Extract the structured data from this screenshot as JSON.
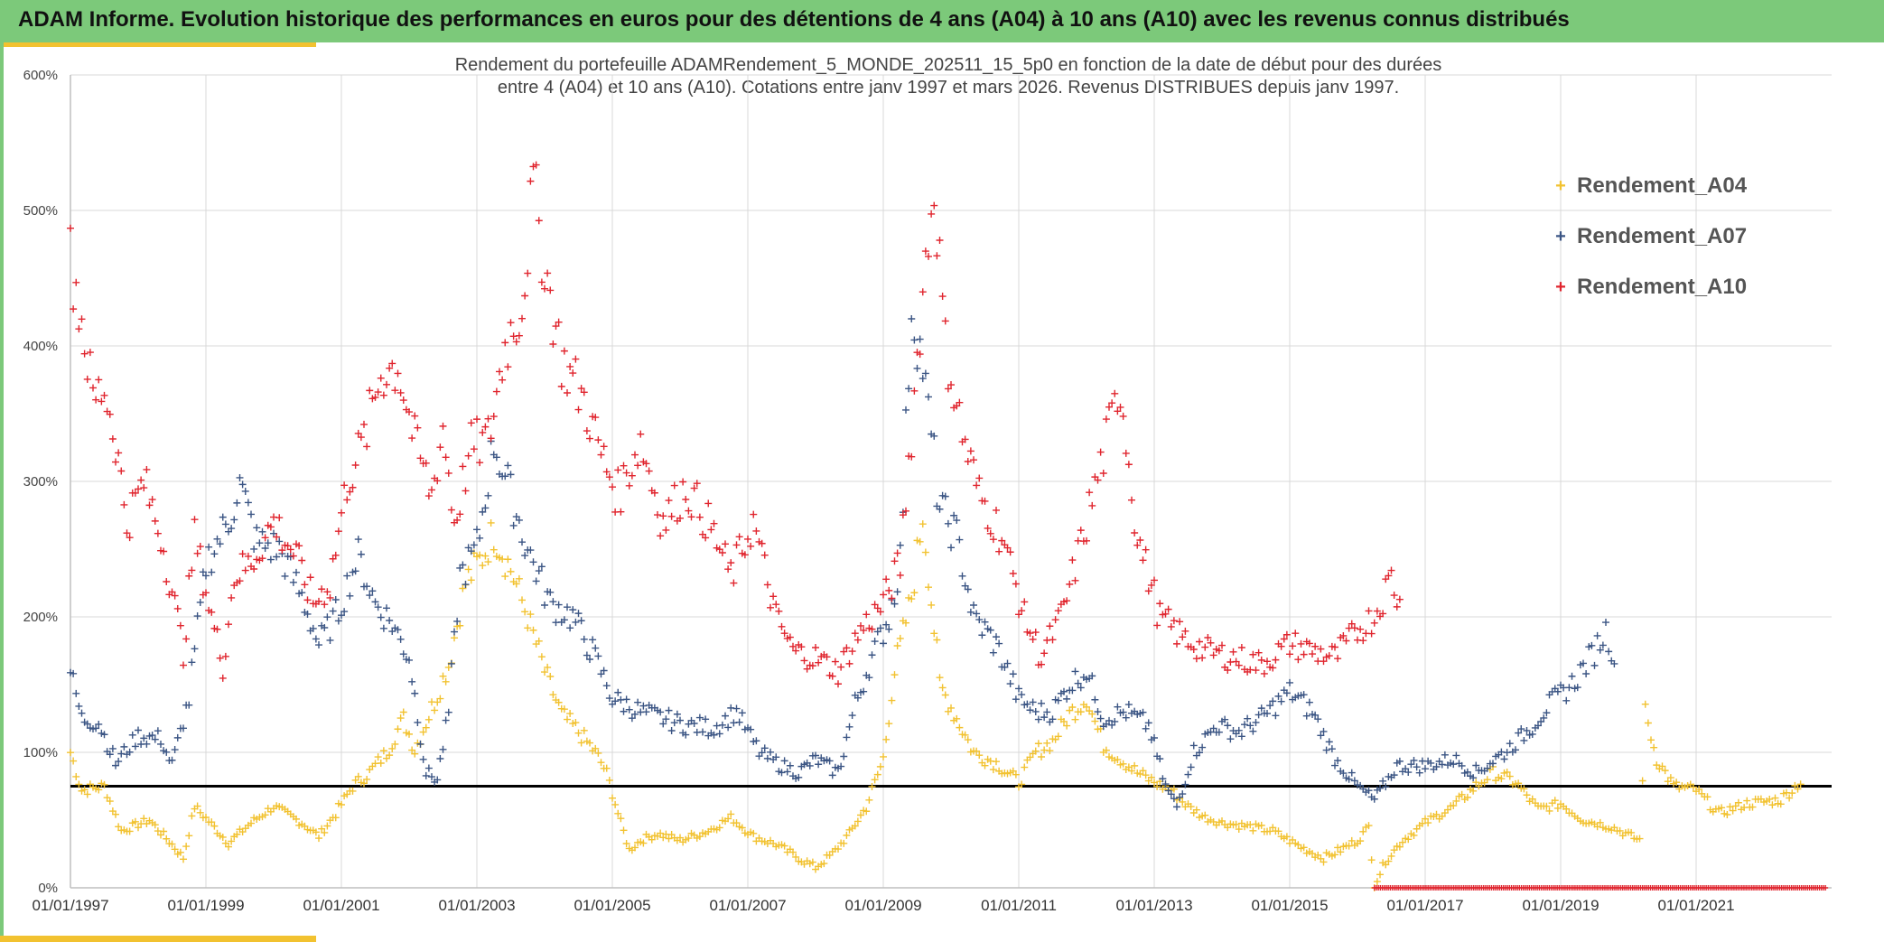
{
  "banner": {
    "title": "ADAM Informe. Evolution historique des performances en euros pour des détentions de 4 ans (A04) à 10 ans (A10) avec les revenus connus distribués"
  },
  "chart_data": {
    "type": "scatter",
    "title_line1": "Rendement du portefeuille ADAMRendement_5_MONDE_202511_15_5p0  en fonction de la date de début pour des durées",
    "title_line2": "entre 4 (A04) et 10 ans (A10). Cotations entre janv 1997 et mars 2026. Revenus DISTRIBUES depuis janv 1997.",
    "x_range": [
      "1997-01-01",
      "2022-12-31"
    ],
    "x_ticks": [
      "01/01/1997",
      "01/01/1999",
      "01/01/2001",
      "01/01/2003",
      "01/01/2005",
      "01/01/2007",
      "01/01/2009",
      "01/01/2011",
      "01/01/2013",
      "01/01/2015",
      "01/01/2017",
      "01/01/2019",
      "01/01/2021"
    ],
    "y_ticks": [
      "0%",
      "100%",
      "200%",
      "300%",
      "400%",
      "500%",
      "600%"
    ],
    "ylim": [
      0,
      600
    ],
    "reference_line_y": 75,
    "grid": true,
    "legend_position": "top-right",
    "series": [
      {
        "name": "Rendement_A04",
        "color": "#f2c230",
        "points": [
          [
            "1997-01",
            100
          ],
          [
            "1997-03",
            72
          ],
          [
            "1997-07",
            75
          ],
          [
            "1997-10",
            42
          ],
          [
            "1998-03",
            50
          ],
          [
            "1998-07",
            32
          ],
          [
            "1998-09",
            22
          ],
          [
            "1998-11",
            60
          ],
          [
            "1999-02",
            47
          ],
          [
            "1999-05",
            33
          ],
          [
            "1999-09",
            48
          ],
          [
            "2000-01",
            60
          ],
          [
            "2000-06",
            48
          ],
          [
            "2000-09",
            38
          ],
          [
            "2000-12",
            55
          ],
          [
            "2001-03",
            75
          ],
          [
            "2001-06",
            85
          ],
          [
            "2001-09",
            100
          ],
          [
            "2001-12",
            125
          ],
          [
            "2002-02",
            102
          ],
          [
            "2002-05",
            132
          ],
          [
            "2002-08",
            165
          ],
          [
            "2002-11",
            225
          ],
          [
            "2003-02",
            245
          ],
          [
            "2003-04",
            262
          ],
          [
            "2003-07",
            235
          ],
          [
            "2003-10",
            200
          ],
          [
            "2004-01",
            160
          ],
          [
            "2004-04",
            128
          ],
          [
            "2004-07",
            115
          ],
          [
            "2004-10",
            100
          ],
          [
            "2004-12",
            85
          ],
          [
            "2005-02",
            55
          ],
          [
            "2005-04",
            28
          ],
          [
            "2005-06",
            35
          ],
          [
            "2005-09",
            40
          ],
          [
            "2006-01",
            35
          ],
          [
            "2006-06",
            42
          ],
          [
            "2006-10",
            52
          ],
          [
            "2007-02",
            38
          ],
          [
            "2007-06",
            32
          ],
          [
            "2007-10",
            22
          ],
          [
            "2008-01",
            15
          ],
          [
            "2008-04",
            25
          ],
          [
            "2008-07",
            40
          ],
          [
            "2008-10",
            60
          ],
          [
            "2009-01",
            95
          ],
          [
            "2009-03",
            160
          ],
          [
            "2009-06",
            215
          ],
          [
            "2009-08",
            275
          ],
          [
            "2009-11",
            150
          ],
          [
            "2010-02",
            125
          ],
          [
            "2010-05",
            100
          ],
          [
            "2010-09",
            92
          ],
          [
            "2011-01",
            78
          ],
          [
            "2011-04",
            100
          ],
          [
            "2011-07",
            108
          ],
          [
            "2011-10",
            128
          ],
          [
            "2012-01",
            140
          ],
          [
            "2012-04",
            105
          ],
          [
            "2012-07",
            95
          ],
          [
            "2012-10",
            85
          ],
          [
            "2013-01",
            78
          ],
          [
            "2013-04",
            72
          ],
          [
            "2013-07",
            60
          ],
          [
            "2013-10",
            52
          ],
          [
            "2014-01",
            48
          ],
          [
            "2014-06",
            45
          ],
          [
            "2014-10",
            42
          ],
          [
            "2015-03",
            30
          ],
          [
            "2015-07",
            22
          ],
          [
            "2015-10",
            28
          ],
          [
            "2016-01",
            35
          ],
          [
            "2016-03",
            45
          ],
          [
            "2016-04",
            2
          ],
          [
            "2016-06",
            20
          ],
          [
            "2016-09",
            35
          ],
          [
            "2017-01",
            48
          ],
          [
            "2017-06",
            60
          ],
          [
            "2017-10",
            75
          ],
          [
            "2018-01",
            85
          ],
          [
            "2018-05",
            78
          ],
          [
            "2018-09",
            58
          ],
          [
            "2019-01",
            62
          ],
          [
            "2019-05",
            50
          ],
          [
            "2019-10",
            45
          ],
          [
            "2020-03",
            35
          ],
          [
            "2020-04",
            130
          ],
          [
            "2020-06",
            95
          ],
          [
            "2020-09",
            75
          ],
          [
            "2021-01",
            72
          ],
          [
            "2021-05",
            55
          ],
          [
            "2021-10",
            62
          ],
          [
            "2022-04",
            65
          ],
          [
            "2022-08",
            80
          ]
        ]
      },
      {
        "name": "Rendement_A07",
        "color": "#3b5584",
        "points": [
          [
            "1997-01",
            160
          ],
          [
            "1997-03",
            125
          ],
          [
            "1997-06",
            122
          ],
          [
            "1997-09",
            92
          ],
          [
            "1998-01",
            112
          ],
          [
            "1998-05",
            110
          ],
          [
            "1998-07",
            90
          ],
          [
            "1998-10",
            140
          ],
          [
            "1999-01",
            240
          ],
          [
            "1999-05",
            270
          ],
          [
            "1999-07",
            298
          ],
          [
            "1999-10",
            255
          ],
          [
            "2000-02",
            250
          ],
          [
            "2000-06",
            215
          ],
          [
            "2000-09",
            180
          ],
          [
            "2000-12",
            200
          ],
          [
            "2001-04",
            245
          ],
          [
            "2001-07",
            210
          ],
          [
            "2001-10",
            195
          ],
          [
            "2002-01",
            170
          ],
          [
            "2002-04",
            85
          ],
          [
            "2002-06",
            80
          ],
          [
            "2002-08",
            130
          ],
          [
            "2002-10",
            230
          ],
          [
            "2003-01",
            250
          ],
          [
            "2003-04",
            330
          ],
          [
            "2003-07",
            290
          ],
          [
            "2003-10",
            250
          ],
          [
            "2004-02",
            210
          ],
          [
            "2004-06",
            200
          ],
          [
            "2004-10",
            170
          ],
          [
            "2005-01",
            140
          ],
          [
            "2005-06",
            130
          ],
          [
            "2005-10",
            125
          ],
          [
            "2006-02",
            120
          ],
          [
            "2006-07",
            118
          ],
          [
            "2006-11",
            130
          ],
          [
            "2007-03",
            100
          ],
          [
            "2007-07",
            90
          ],
          [
            "2007-10",
            85
          ],
          [
            "2008-01",
            95
          ],
          [
            "2008-05",
            85
          ],
          [
            "2008-08",
            135
          ],
          [
            "2008-11",
            170
          ],
          [
            "2009-02",
            200
          ],
          [
            "2009-04",
            240
          ],
          [
            "2009-06",
            430
          ],
          [
            "2009-08",
            385
          ],
          [
            "2009-11",
            280
          ],
          [
            "2010-02",
            260
          ],
          [
            "2010-05",
            200
          ],
          [
            "2010-09",
            180
          ],
          [
            "2011-01",
            140
          ],
          [
            "2011-04",
            130
          ],
          [
            "2011-07",
            130
          ],
          [
            "2011-10",
            150
          ],
          [
            "2012-01",
            160
          ],
          [
            "2012-04",
            125
          ],
          [
            "2012-08",
            130
          ],
          [
            "2012-12",
            120
          ],
          [
            "2013-03",
            75
          ],
          [
            "2013-05",
            60
          ],
          [
            "2013-08",
            100
          ],
          [
            "2013-12",
            120
          ],
          [
            "2014-04",
            115
          ],
          [
            "2014-08",
            125
          ],
          [
            "2015-01",
            145
          ],
          [
            "2015-05",
            130
          ],
          [
            "2015-09",
            95
          ],
          [
            "2016-01",
            75
          ],
          [
            "2016-04",
            65
          ],
          [
            "2016-08",
            90
          ],
          [
            "2017-01",
            90
          ],
          [
            "2017-06",
            95
          ],
          [
            "2017-10",
            85
          ],
          [
            "2018-03",
            100
          ],
          [
            "2018-07",
            115
          ],
          [
            "2018-11",
            135
          ],
          [
            "2019-03",
            150
          ],
          [
            "2019-07",
            175
          ],
          [
            "2019-09",
            190
          ],
          [
            "2019-11",
            165
          ]
        ]
      },
      {
        "name": "Rendement_A10",
        "color": "#e0252e",
        "points": [
          [
            "1997-01",
            465
          ],
          [
            "1997-03",
            420
          ],
          [
            "1997-05",
            360
          ],
          [
            "1997-07",
            370
          ],
          [
            "1997-09",
            330
          ],
          [
            "1997-11",
            270
          ],
          [
            "1998-02",
            300
          ],
          [
            "1998-05",
            260
          ],
          [
            "1998-07",
            220
          ],
          [
            "1998-09",
            175
          ],
          [
            "1998-11",
            260
          ],
          [
            "1999-02",
            200
          ],
          [
            "1999-04",
            165
          ],
          [
            "1999-06",
            230
          ],
          [
            "1999-09",
            240
          ],
          [
            "2000-01",
            270
          ],
          [
            "2000-05",
            245
          ],
          [
            "2000-08",
            210
          ],
          [
            "2000-11",
            225
          ],
          [
            "2001-02",
            300
          ],
          [
            "2001-05",
            330
          ],
          [
            "2001-08",
            380
          ],
          [
            "2001-11",
            385
          ],
          [
            "2002-02",
            330
          ],
          [
            "2002-05",
            290
          ],
          [
            "2002-07",
            340
          ],
          [
            "2002-09",
            270
          ],
          [
            "2002-12",
            325
          ],
          [
            "2003-03",
            330
          ],
          [
            "2003-06",
            400
          ],
          [
            "2003-09",
            430
          ],
          [
            "2003-11",
            520
          ],
          [
            "2004-01",
            460
          ],
          [
            "2004-04",
            390
          ],
          [
            "2004-08",
            360
          ],
          [
            "2004-11",
            320
          ],
          [
            "2005-02",
            290
          ],
          [
            "2005-06",
            330
          ],
          [
            "2005-10",
            270
          ],
          [
            "2006-02",
            295
          ],
          [
            "2006-06",
            270
          ],
          [
            "2006-10",
            230
          ],
          [
            "2007-02",
            270
          ],
          [
            "2007-06",
            200
          ],
          [
            "2007-09",
            175
          ],
          [
            "2008-01",
            170
          ],
          [
            "2008-05",
            160
          ],
          [
            "2008-09",
            190
          ],
          [
            "2009-01",
            210
          ],
          [
            "2009-04",
            240
          ],
          [
            "2009-06",
            340
          ],
          [
            "2009-08",
            440
          ],
          [
            "2009-10",
            520
          ],
          [
            "2009-12",
            400
          ],
          [
            "2010-03",
            335
          ],
          [
            "2010-06",
            290
          ],
          [
            "2010-10",
            260
          ],
          [
            "2011-02",
            200
          ],
          [
            "2011-05",
            170
          ],
          [
            "2011-09",
            205
          ],
          [
            "2012-01",
            270
          ],
          [
            "2012-04",
            320
          ],
          [
            "2012-07",
            370
          ],
          [
            "2012-10",
            260
          ],
          [
            "2013-02",
            200
          ],
          [
            "2013-06",
            185
          ],
          [
            "2013-10",
            175
          ],
          [
            "2014-03",
            170
          ],
          [
            "2014-08",
            165
          ],
          [
            "2015-01",
            180
          ],
          [
            "2015-05",
            175
          ],
          [
            "2015-09",
            170
          ],
          [
            "2016-01",
            190
          ],
          [
            "2016-04",
            200
          ],
          [
            "2016-07",
            230
          ],
          [
            "2016-09",
            200
          ]
        ]
      }
    ],
    "series_a10_zero_range": [
      "2016-04",
      "2022-12"
    ]
  }
}
